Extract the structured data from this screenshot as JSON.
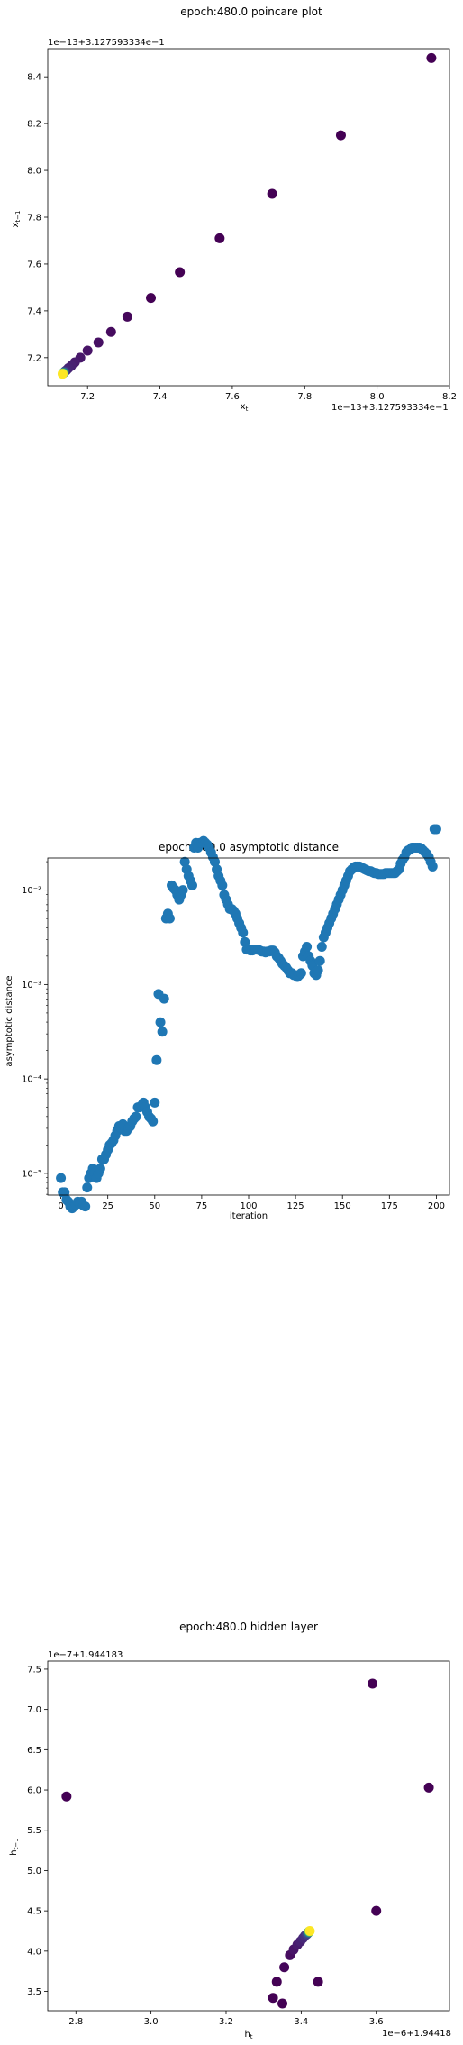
{
  "chart_data": [
    {
      "type": "scatter",
      "title": "epoch:480.0 poincare plot",
      "xlabel": "x_t",
      "ylabel": "x_{t-1}",
      "x_offset_label": "1e−13+3.127593334e−1",
      "y_offset_label": "1e−13+3.127593334e−1",
      "xlim": [
        7.09,
        8.2
      ],
      "ylim": [
        7.08,
        8.52
      ],
      "xticks": [
        7.2,
        7.4,
        7.6,
        7.8,
        8.0,
        8.2
      ],
      "xtick_labels": [
        "7.2",
        "7.4",
        "7.6",
        "7.8",
        "8.0",
        "8.2"
      ],
      "yticks": [
        7.2,
        7.4,
        7.6,
        7.8,
        8.0,
        8.2,
        8.4
      ],
      "ytick_labels": [
        "7.2",
        "7.4",
        "7.6",
        "7.8",
        "8.0",
        "8.2",
        "8.4"
      ],
      "colormap": "viridis",
      "points": [
        {
          "x": 8.15,
          "y": 8.48,
          "c": "#440154"
        },
        {
          "x": 7.9,
          "y": 8.15,
          "c": "#440154"
        },
        {
          "x": 7.71,
          "y": 7.9,
          "c": "#440154"
        },
        {
          "x": 7.565,
          "y": 7.71,
          "c": "#440154"
        },
        {
          "x": 7.455,
          "y": 7.565,
          "c": "#440154"
        },
        {
          "x": 7.375,
          "y": 7.455,
          "c": "#440154"
        },
        {
          "x": 7.31,
          "y": 7.375,
          "c": "#45075a"
        },
        {
          "x": 7.265,
          "y": 7.31,
          "c": "#460b5e"
        },
        {
          "x": 7.23,
          "y": 7.265,
          "c": "#471063"
        },
        {
          "x": 7.2,
          "y": 7.23,
          "c": "#481467"
        },
        {
          "x": 7.18,
          "y": 7.2,
          "c": "#48186a"
        },
        {
          "x": 7.165,
          "y": 7.18,
          "c": "#481c6e"
        },
        {
          "x": 7.155,
          "y": 7.165,
          "c": "#482071"
        },
        {
          "x": 7.147,
          "y": 7.155,
          "c": "#472373"
        },
        {
          "x": 7.142,
          "y": 7.147,
          "c": "#472676"
        },
        {
          "x": 7.138,
          "y": 7.142,
          "c": "#46307e"
        },
        {
          "x": 7.136,
          "y": 7.138,
          "c": "#3b528b"
        },
        {
          "x": 7.134,
          "y": 7.136,
          "c": "#2c728e"
        },
        {
          "x": 7.133,
          "y": 7.134,
          "c": "#21918c"
        },
        {
          "x": 7.132,
          "y": 7.133,
          "c": "#5ec962"
        },
        {
          "x": 7.131,
          "y": 7.131,
          "c": "#fde725"
        }
      ]
    },
    {
      "type": "scatter",
      "title": "epoch:480.0 asymptotic distance",
      "xlabel": "iteration",
      "ylabel": "asymptotic distance",
      "yscale": "log",
      "xlim": [
        -7,
        207
      ],
      "ylim_log10": [
        -5.23,
        -1.66
      ],
      "xticks": [
        0,
        25,
        50,
        75,
        100,
        125,
        150,
        175,
        200
      ],
      "xtick_labels": [
        "0",
        "25",
        "50",
        "75",
        "100",
        "125",
        "150",
        "175",
        "200"
      ],
      "yticks_log10": [
        -5,
        -4,
        -3,
        -2
      ],
      "ytick_labels": [
        "10⁻⁵",
        "10⁻⁴",
        "10⁻³",
        "10⁻²"
      ],
      "color": "#1f77b4",
      "x": [
        0,
        1,
        2,
        3,
        4,
        5,
        6,
        7,
        8,
        9,
        10,
        11,
        12,
        13,
        14,
        15,
        16,
        17,
        18,
        19,
        20,
        21,
        22,
        23,
        24,
        25,
        26,
        27,
        28,
        29,
        30,
        31,
        32,
        33,
        34,
        35,
        36,
        37,
        38,
        39,
        40,
        41,
        42,
        43,
        44,
        45,
        46,
        47,
        48,
        49,
        50,
        51,
        52,
        53,
        54,
        55,
        56,
        57,
        58,
        59,
        60,
        61,
        62,
        63,
        64,
        65,
        66,
        67,
        68,
        69,
        70,
        71,
        72,
        73,
        74,
        75,
        76,
        77,
        78,
        79,
        80,
        81,
        82,
        83,
        84,
        85,
        86,
        87,
        88,
        89,
        90,
        91,
        92,
        93,
        94,
        95,
        96,
        97,
        98,
        99,
        100,
        101,
        102,
        103,
        104,
        105,
        106,
        107,
        108,
        109,
        110,
        111,
        112,
        113,
        114,
        115,
        116,
        117,
        118,
        119,
        120,
        121,
        122,
        123,
        124,
        125,
        126,
        127,
        128,
        129,
        130,
        131,
        132,
        133,
        134,
        135,
        136,
        137,
        138,
        139,
        140,
        141,
        142,
        143,
        144,
        145,
        146,
        147,
        148,
        149,
        150,
        151,
        152,
        153,
        154,
        155,
        156,
        157,
        158,
        159,
        160,
        161,
        162,
        163,
        164,
        165,
        166,
        167,
        168,
        169,
        170,
        171,
        172,
        173,
        174,
        175,
        176,
        177,
        178,
        179,
        180,
        181,
        182,
        183,
        184,
        185,
        186,
        187,
        188,
        189,
        190,
        191,
        192,
        193,
        194,
        195,
        196,
        197,
        198,
        199,
        200
      ],
      "log10_y": [
        -5.05,
        -5.2,
        -5.2,
        -5.28,
        -5.3,
        -5.35,
        -5.37,
        -5.35,
        -5.33,
        -5.3,
        -5.32,
        -5.3,
        -5.34,
        -5.35,
        -5.15,
        -5.05,
        -5.0,
        -4.95,
        -5.0,
        -5.05,
        -5.0,
        -4.95,
        -4.85,
        -4.85,
        -4.8,
        -4.75,
        -4.7,
        -4.68,
        -4.65,
        -4.6,
        -4.55,
        -4.5,
        -4.52,
        -4.48,
        -4.55,
        -4.55,
        -4.52,
        -4.5,
        -4.45,
        -4.42,
        -4.4,
        -4.3,
        -4.3,
        -4.28,
        -4.25,
        -4.3,
        -4.35,
        -4.4,
        -4.42,
        -4.45,
        -4.25,
        -3.8,
        -3.1,
        -3.4,
        -3.5,
        -3.15,
        -2.3,
        -2.25,
        -2.3,
        -1.95,
        -1.98,
        -2.0,
        -2.05,
        -2.1,
        -2.05,
        -2.0,
        -1.7,
        -1.78,
        -1.85,
        -1.9,
        -1.95,
        -1.55,
        -1.5,
        -1.55,
        -1.5,
        -1.5,
        -1.48,
        -1.5,
        -1.52,
        -1.55,
        -1.6,
        -1.65,
        -1.7,
        -1.78,
        -1.85,
        -1.9,
        -1.95,
        -2.05,
        -2.1,
        -2.15,
        -2.2,
        -2.2,
        -2.22,
        -2.25,
        -2.3,
        -2.35,
        -2.4,
        -2.45,
        -2.55,
        -2.63,
        -2.63,
        -2.64,
        -2.64,
        -2.63,
        -2.63,
        -2.63,
        -2.64,
        -2.65,
        -2.65,
        -2.66,
        -2.65,
        -2.65,
        -2.64,
        -2.64,
        -2.66,
        -2.7,
        -2.72,
        -2.75,
        -2.78,
        -2.8,
        -2.82,
        -2.85,
        -2.88,
        -2.88,
        -2.9,
        -2.9,
        -2.92,
        -2.9,
        -2.88,
        -2.7,
        -2.65,
        -2.6,
        -2.7,
        -2.75,
        -2.8,
        -2.88,
        -2.9,
        -2.85,
        -2.75,
        -2.6,
        -2.5,
        -2.45,
        -2.4,
        -2.35,
        -2.3,
        -2.25,
        -2.2,
        -2.15,
        -2.1,
        -2.05,
        -2.0,
        -1.95,
        -1.9,
        -1.85,
        -1.8,
        -1.78,
        -1.76,
        -1.75,
        -1.75,
        -1.75,
        -1.76,
        -1.77,
        -1.78,
        -1.79,
        -1.8,
        -1.8,
        -1.81,
        -1.82,
        -1.82,
        -1.83,
        -1.83,
        -1.83,
        -1.83,
        -1.82,
        -1.82,
        -1.82,
        -1.82,
        -1.82,
        -1.82,
        -1.8,
        -1.78,
        -1.72,
        -1.68,
        -1.65,
        -1.6,
        -1.58,
        -1.57,
        -1.55,
        -1.55,
        -1.55,
        -1.55,
        -1.55,
        -1.56,
        -1.58,
        -1.6,
        -1.62,
        -1.65,
        -1.7,
        -1.75
      ]
    },
    {
      "type": "scatter",
      "title": "epoch:480.0 hidden layer",
      "xlabel": "h_t",
      "ylabel": "h_{t-1}",
      "x_offset_label": "1e−6+1.94418",
      "y_offset_label": "1e−7+1.944183",
      "xlim": [
        2.725,
        3.795
      ],
      "ylim": [
        3.26,
        7.6
      ],
      "xticks": [
        2.8,
        3.0,
        3.2,
        3.4,
        3.6
      ],
      "xtick_labels": [
        "2.8",
        "3.0",
        "3.2",
        "3.4",
        "3.6"
      ],
      "yticks": [
        3.5,
        4.0,
        4.5,
        5.0,
        5.5,
        6.0,
        6.5,
        7.0,
        7.5
      ],
      "ytick_labels": [
        "3.5",
        "4.0",
        "4.5",
        "5.0",
        "5.5",
        "6.0",
        "6.5",
        "7.0",
        "7.5"
      ],
      "colormap": "viridis",
      "points": [
        {
          "x": 3.59,
          "y": 7.32,
          "c": "#440154"
        },
        {
          "x": 3.74,
          "y": 6.03,
          "c": "#440154"
        },
        {
          "x": 2.775,
          "y": 5.92,
          "c": "#440154"
        },
        {
          "x": 3.6,
          "y": 4.5,
          "c": "#440154"
        },
        {
          "x": 3.445,
          "y": 3.62,
          "c": "#440154"
        },
        {
          "x": 3.325,
          "y": 3.42,
          "c": "#440154"
        },
        {
          "x": 3.35,
          "y": 3.35,
          "c": "#440154"
        },
        {
          "x": 3.335,
          "y": 3.62,
          "c": "#440154"
        },
        {
          "x": 3.355,
          "y": 3.8,
          "c": "#45065a"
        },
        {
          "x": 3.37,
          "y": 3.95,
          "c": "#470d60"
        },
        {
          "x": 3.38,
          "y": 4.02,
          "c": "#481467"
        },
        {
          "x": 3.39,
          "y": 4.08,
          "c": "#481b6d"
        },
        {
          "x": 3.398,
          "y": 4.12,
          "c": "#482173"
        },
        {
          "x": 3.405,
          "y": 4.16,
          "c": "#472878"
        },
        {
          "x": 3.41,
          "y": 4.19,
          "c": "#46307e"
        },
        {
          "x": 3.415,
          "y": 4.21,
          "c": "#423f85"
        },
        {
          "x": 3.418,
          "y": 4.225,
          "c": "#3b528b"
        },
        {
          "x": 3.42,
          "y": 4.235,
          "c": "#2c728e"
        },
        {
          "x": 3.421,
          "y": 4.24,
          "c": "#21918c"
        },
        {
          "x": 3.422,
          "y": 4.245,
          "c": "#5ec962"
        },
        {
          "x": 3.423,
          "y": 4.25,
          "c": "#fde725"
        }
      ]
    }
  ]
}
